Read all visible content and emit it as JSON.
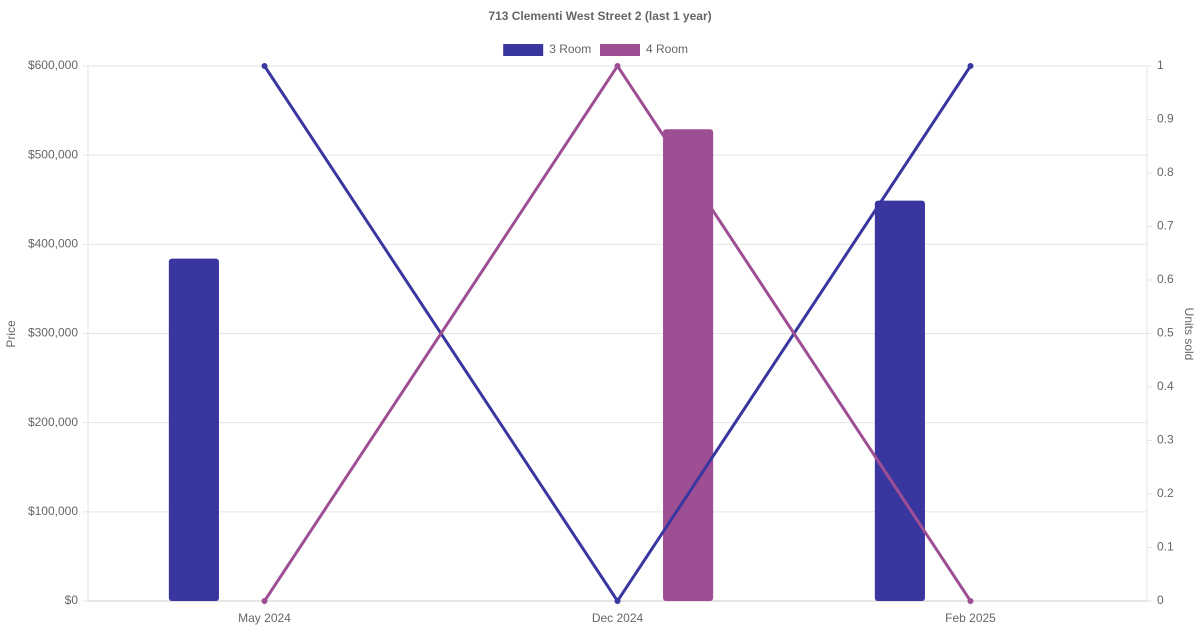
{
  "chart_data": {
    "type": "bar-line",
    "title": "713 Clementi West Street 2 (last 1 year)",
    "categories": [
      "May 2024",
      "Dec 2024",
      "Feb 2025"
    ],
    "series": [
      {
        "name": "3 Room",
        "color": "#3a36a0",
        "type": "bar",
        "values": [
          384000,
          null,
          449000
        ]
      },
      {
        "name": "4 Room",
        "color": "#9e4f94",
        "type": "bar",
        "values": [
          null,
          529000,
          null
        ]
      },
      {
        "name": "3 Room",
        "color": "#3a36a0",
        "type": "line",
        "axis": "y2",
        "values": [
          1,
          0,
          1
        ]
      },
      {
        "name": "4 Room",
        "color": "#9e4f94",
        "type": "line",
        "axis": "y2",
        "values": [
          0,
          1,
          0
        ]
      }
    ],
    "ylabel": "Price",
    "y2label": "Units sold",
    "ylim": [
      0,
      600000
    ],
    "yticks": [
      {
        "value": 0,
        "label": "$0"
      },
      {
        "value": 100000,
        "label": "$100,000"
      },
      {
        "value": 200000,
        "label": "$200,000"
      },
      {
        "value": 300000,
        "label": "$300,000"
      },
      {
        "value": 400000,
        "label": "$400,000"
      },
      {
        "value": 500000,
        "label": "$500,000"
      },
      {
        "value": 600000,
        "label": "$600,000"
      }
    ],
    "y2lim": [
      0,
      1
    ],
    "y2ticks": [
      0,
      0.1,
      0.2,
      0.3,
      0.4,
      0.5,
      0.6,
      0.7,
      0.8,
      0.9,
      1
    ],
    "grid": true,
    "legend": "top"
  }
}
